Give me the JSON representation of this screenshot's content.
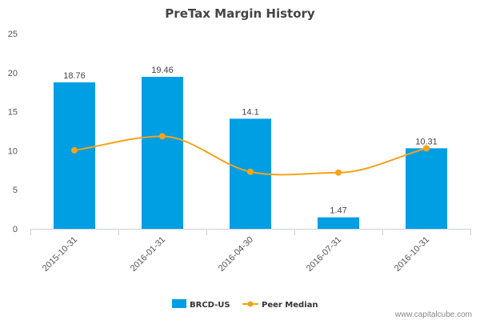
{
  "chart_data": {
    "type": "bar",
    "title": "PreTax Margin History",
    "categories": [
      "2015-10-31",
      "2016-01-31",
      "2016-04-30",
      "2016-07-31",
      "2016-10-31"
    ],
    "series": [
      {
        "name": "BRCD-US",
        "kind": "bar",
        "color": "#009ee3",
        "values": [
          18.76,
          19.46,
          14.1,
          1.47,
          10.31
        ],
        "labels": [
          "18.76",
          "19.46",
          "14.1",
          "1.47",
          "10.31"
        ]
      },
      {
        "name": "Peer Median",
        "kind": "line",
        "smooth": true,
        "color": "#f5a31a",
        "values": [
          10.05,
          11.85,
          7.3,
          7.2,
          10.31
        ]
      }
    ],
    "ylim": [
      0,
      25
    ],
    "yticks": [
      "0",
      "5",
      "10",
      "15",
      "20",
      "25"
    ],
    "grid": false,
    "legend_position": "bottom-center"
  },
  "watermark": "www.capitalcube.com"
}
